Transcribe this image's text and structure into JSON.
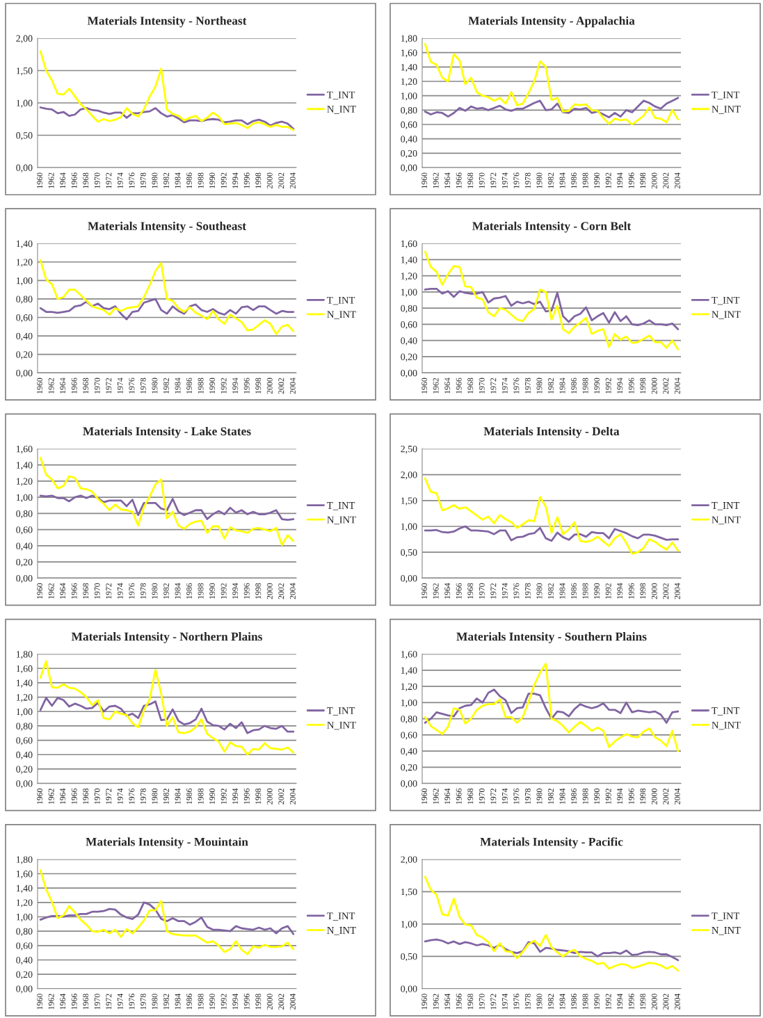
{
  "chart_data": [
    {
      "type": "line",
      "title": "Materials Intensity - Northeast",
      "categories": [
        "1960",
        null,
        "1962",
        null,
        "1964",
        null,
        "1966",
        null,
        "1968",
        null,
        "1970",
        null,
        "1972",
        null,
        "1974",
        null,
        "1976",
        null,
        "1978",
        null,
        "1980",
        null,
        "1982",
        null,
        "1984",
        null,
        "1986",
        null,
        "1988",
        null,
        "1990",
        null,
        "1992",
        null,
        "1994",
        null,
        "1996",
        null,
        "1998",
        null,
        "2000",
        null,
        "2002",
        null,
        "2004"
      ],
      "ylim": [
        0,
        2
      ],
      "yticks": [
        {
          "value": 0,
          "label": "0,00"
        },
        {
          "value": 0.5,
          "label": "0,50"
        },
        {
          "value": 1,
          "label": "1,00"
        },
        {
          "value": 1.5,
          "label": "1,50"
        },
        {
          "value": 2,
          "label": "2,00"
        }
      ],
      "grid": "y",
      "legend": "right",
      "line_style": "solid",
      "marker": "none",
      "series": [
        {
          "name": "T_INT",
          "color": "#8064a2",
          "values": [
            0.93,
            0.91,
            0.9,
            0.84,
            0.86,
            0.8,
            0.82,
            0.9,
            0.92,
            0.89,
            0.88,
            0.85,
            0.83,
            0.85,
            0.85,
            0.77,
            0.84,
            0.84,
            0.86,
            0.87,
            0.92,
            0.84,
            0.79,
            0.81,
            0.76,
            0.7,
            0.73,
            0.73,
            0.72,
            0.74,
            0.75,
            0.74,
            0.7,
            0.71,
            0.73,
            0.73,
            0.67,
            0.72,
            0.74,
            0.71,
            0.65,
            0.69,
            0.71,
            0.68,
            0.6
          ]
        },
        {
          "name": "N_INT",
          "color": "#ffff00",
          "values": [
            1.8,
            1.5,
            1.35,
            1.14,
            1.13,
            1.22,
            1.1,
            0.98,
            0.9,
            0.8,
            0.71,
            0.75,
            0.72,
            0.74,
            0.78,
            0.92,
            0.83,
            0.79,
            0.9,
            1.1,
            1.25,
            1.53,
            0.9,
            0.83,
            0.8,
            0.73,
            0.77,
            0.8,
            0.72,
            0.77,
            0.85,
            0.79,
            0.67,
            0.68,
            0.69,
            0.66,
            0.61,
            0.68,
            0.7,
            0.67,
            0.63,
            0.66,
            0.63,
            0.63,
            0.58
          ]
        }
      ]
    },
    {
      "type": "line",
      "title": "Materials Intensity - Appalachia",
      "categories": [
        "1960",
        null,
        "1962",
        null,
        "1964",
        null,
        "1966",
        null,
        "1968",
        null,
        "1970",
        null,
        "1972",
        null,
        "1974",
        null,
        "1976",
        null,
        "1978",
        null,
        "1980",
        null,
        "1982",
        null,
        "1984",
        null,
        "1986",
        null,
        "1988",
        null,
        "1990",
        null,
        "1992",
        null,
        "1994",
        null,
        "1996",
        null,
        "1998",
        null,
        "2000",
        null,
        "2002",
        null,
        "2004"
      ],
      "ylim": [
        0,
        1.8
      ],
      "yticks": [
        {
          "value": 0,
          "label": "0,00"
        },
        {
          "value": 0.2,
          "label": "0,20"
        },
        {
          "value": 0.4,
          "label": "0,40"
        },
        {
          "value": 0.6,
          "label": "0,60"
        },
        {
          "value": 0.8,
          "label": "0,80"
        },
        {
          "value": 1,
          "label": "1,00"
        },
        {
          "value": 1.2,
          "label": "1,20"
        },
        {
          "value": 1.4,
          "label": "1,40"
        },
        {
          "value": 1.6,
          "label": "1,60"
        },
        {
          "value": 1.8,
          "label": "1,80"
        }
      ],
      "grid": "y",
      "legend": "right",
      "line_style": "solid",
      "marker": "none",
      "series": [
        {
          "name": "T_INT",
          "color": "#8064a2",
          "values": [
            0.78,
            0.74,
            0.77,
            0.76,
            0.71,
            0.76,
            0.83,
            0.79,
            0.85,
            0.82,
            0.83,
            0.8,
            0.83,
            0.86,
            0.81,
            0.79,
            0.82,
            0.82,
            0.86,
            0.9,
            0.93,
            0.8,
            0.81,
            0.89,
            0.77,
            0.76,
            0.82,
            0.81,
            0.83,
            0.76,
            0.78,
            0.74,
            0.7,
            0.76,
            0.71,
            0.8,
            0.77,
            0.85,
            0.93,
            0.9,
            0.85,
            0.82,
            0.89,
            0.93,
            0.97
          ]
        },
        {
          "name": "N_INT",
          "color": "#ffff00",
          "values": [
            1.72,
            1.47,
            1.43,
            1.25,
            1.2,
            1.58,
            1.49,
            1.16,
            1.25,
            1.05,
            1.0,
            0.98,
            0.93,
            0.97,
            0.89,
            1.05,
            0.87,
            0.89,
            1.04,
            1.2,
            1.48,
            1.4,
            0.94,
            0.97,
            0.78,
            0.79,
            0.88,
            0.87,
            0.88,
            0.8,
            0.79,
            0.69,
            0.61,
            0.68,
            0.66,
            0.67,
            0.6,
            0.66,
            0.72,
            0.84,
            0.69,
            0.68,
            0.63,
            0.8,
            0.67
          ]
        }
      ]
    },
    {
      "type": "line",
      "title": "Materials Intensity - Southeast",
      "categories": [
        "1960",
        null,
        "1962",
        null,
        "1964",
        null,
        "1966",
        null,
        "1968",
        null,
        "1970",
        null,
        "1972",
        null,
        "1974",
        null,
        "1976",
        null,
        "1978",
        null,
        "1980",
        null,
        "1982",
        null,
        "1984",
        null,
        "1986",
        null,
        "1988",
        null,
        "1990",
        null,
        "1992",
        null,
        "1994",
        null,
        "1996",
        null,
        "1998",
        null,
        "2000",
        null,
        "2002",
        null,
        "2004"
      ],
      "ylim": [
        0,
        1.4
      ],
      "yticks": [
        {
          "value": 0,
          "label": "0,00"
        },
        {
          "value": 0.2,
          "label": "0,20"
        },
        {
          "value": 0.4,
          "label": "0,40"
        },
        {
          "value": 0.6,
          "label": "0,60"
        },
        {
          "value": 0.8,
          "label": "0,80"
        },
        {
          "value": 1,
          "label": "1,00"
        },
        {
          "value": 1.2,
          "label": "1,20"
        },
        {
          "value": 1.4,
          "label": "1,40"
        }
      ],
      "grid": "y",
      "legend": "right",
      "line_style": "solid",
      "marker": "none",
      "series": [
        {
          "name": "T_INT",
          "color": "#8064a2",
          "values": [
            0.7,
            0.66,
            0.66,
            0.65,
            0.66,
            0.67,
            0.72,
            0.73,
            0.77,
            0.72,
            0.75,
            0.7,
            0.69,
            0.72,
            0.64,
            0.58,
            0.66,
            0.67,
            0.76,
            0.78,
            0.8,
            0.68,
            0.64,
            0.72,
            0.67,
            0.64,
            0.72,
            0.74,
            0.68,
            0.66,
            0.69,
            0.65,
            0.63,
            0.68,
            0.64,
            0.71,
            0.72,
            0.68,
            0.72,
            0.72,
            0.68,
            0.64,
            0.67,
            0.66,
            0.66
          ]
        },
        {
          "name": "N_INT",
          "color": "#ffff00",
          "values": [
            1.22,
            1.01,
            0.96,
            0.8,
            0.82,
            0.9,
            0.9,
            0.84,
            0.78,
            0.72,
            0.7,
            0.68,
            0.63,
            0.7,
            0.67,
            0.7,
            0.71,
            0.72,
            0.82,
            0.95,
            1.1,
            1.19,
            0.8,
            0.78,
            0.7,
            0.66,
            0.71,
            0.65,
            0.62,
            0.58,
            0.67,
            0.58,
            0.53,
            0.63,
            0.59,
            0.55,
            0.46,
            0.47,
            0.52,
            0.57,
            0.53,
            0.42,
            0.5,
            0.52,
            0.45
          ]
        }
      ]
    },
    {
      "type": "line",
      "title": "Materials Intensity - Corn Belt",
      "categories": [
        "1960",
        null,
        "1962",
        null,
        "1964",
        null,
        "1966",
        null,
        "1968",
        null,
        "1970",
        null,
        "1972",
        null,
        "1974",
        null,
        "1976",
        null,
        "1978",
        null,
        "1980",
        null,
        "1982",
        null,
        "1984",
        null,
        "1986",
        null,
        "1988",
        null,
        "1990",
        null,
        "1992",
        null,
        "1994",
        null,
        "1996",
        null,
        "1998",
        null,
        "2000",
        null,
        "2002",
        null,
        "2004"
      ],
      "ylim": [
        0,
        1.6
      ],
      "yticks": [
        {
          "value": 0,
          "label": "0,00"
        },
        {
          "value": 0.2,
          "label": "0,20"
        },
        {
          "value": 0.4,
          "label": "0,40"
        },
        {
          "value": 0.6,
          "label": "0,60"
        },
        {
          "value": 0.8,
          "label": "0,80"
        },
        {
          "value": 1,
          "label": "1,00"
        },
        {
          "value": 1.2,
          "label": "1,20"
        },
        {
          "value": 1.4,
          "label": "1,40"
        },
        {
          "value": 1.6,
          "label": "1,60"
        }
      ],
      "grid": "y",
      "legend": "right",
      "line_style": "solid",
      "marker": "none",
      "series": [
        {
          "name": "T_INT",
          "color": "#8064a2",
          "values": [
            1.03,
            1.04,
            1.04,
            0.98,
            1.01,
            0.94,
            1.01,
            0.99,
            0.98,
            0.98,
            1.0,
            0.87,
            0.92,
            0.93,
            0.95,
            0.83,
            0.88,
            0.86,
            0.88,
            0.85,
            0.88,
            0.76,
            0.77,
            0.99,
            0.7,
            0.63,
            0.7,
            0.73,
            0.81,
            0.65,
            0.7,
            0.74,
            0.62,
            0.75,
            0.64,
            0.7,
            0.6,
            0.59,
            0.61,
            0.65,
            0.6,
            0.6,
            0.59,
            0.61,
            0.54
          ]
        },
        {
          "name": "N_INT",
          "color": "#ffff00",
          "values": [
            1.5,
            1.31,
            1.25,
            1.09,
            1.22,
            1.32,
            1.31,
            1.07,
            1.06,
            0.93,
            0.91,
            0.75,
            0.7,
            0.8,
            0.78,
            0.72,
            0.66,
            0.64,
            0.74,
            0.79,
            1.03,
            1.0,
            0.66,
            0.83,
            0.54,
            0.49,
            0.57,
            0.62,
            0.68,
            0.48,
            0.52,
            0.54,
            0.32,
            0.48,
            0.41,
            0.45,
            0.37,
            0.38,
            0.42,
            0.46,
            0.38,
            0.38,
            0.31,
            0.4,
            0.29
          ]
        }
      ]
    },
    {
      "type": "line",
      "title": "Materials Intensity - Lake States",
      "categories": [
        "1960",
        null,
        "1962",
        null,
        "1964",
        null,
        "1966",
        null,
        "1968",
        null,
        "1970",
        null,
        "1972",
        null,
        "1974",
        null,
        "1976",
        null,
        "1978",
        null,
        "1980",
        null,
        "1982",
        null,
        "1984",
        null,
        "1986",
        null,
        "1988",
        null,
        "1990",
        null,
        "1992",
        null,
        "1994",
        null,
        "1996",
        null,
        "1998",
        null,
        "2000",
        null,
        "2002",
        null,
        "2004"
      ],
      "ylim": [
        0,
        1.6
      ],
      "yticks": [
        {
          "value": 0,
          "label": "0,00"
        },
        {
          "value": 0.2,
          "label": "0,20"
        },
        {
          "value": 0.4,
          "label": "0,40"
        },
        {
          "value": 0.6,
          "label": "0,60"
        },
        {
          "value": 0.8,
          "label": "0,80"
        },
        {
          "value": 1,
          "label": "1,00"
        },
        {
          "value": 1.2,
          "label": "1,20"
        },
        {
          "value": 1.4,
          "label": "1,40"
        },
        {
          "value": 1.6,
          "label": "1,60"
        }
      ],
      "grid": "y",
      "legend": "right",
      "line_style": "solid",
      "marker": "none",
      "series": [
        {
          "name": "T_INT",
          "color": "#8064a2",
          "values": [
            1.02,
            1.01,
            1.02,
            0.99,
            0.99,
            0.95,
            1.0,
            1.02,
            0.99,
            1.02,
            0.99,
            0.94,
            0.96,
            0.96,
            0.96,
            0.89,
            0.97,
            0.78,
            0.93,
            0.93,
            0.93,
            0.86,
            0.84,
            0.98,
            0.82,
            0.78,
            0.81,
            0.84,
            0.84,
            0.73,
            0.79,
            0.83,
            0.79,
            0.87,
            0.81,
            0.84,
            0.79,
            0.82,
            0.79,
            0.79,
            0.81,
            0.84,
            0.73,
            0.72,
            0.73
          ]
        },
        {
          "name": "N_INT",
          "color": "#ffff00",
          "values": [
            1.49,
            1.28,
            1.22,
            1.11,
            1.14,
            1.26,
            1.24,
            1.11,
            1.1,
            1.07,
            0.98,
            0.92,
            0.84,
            0.91,
            0.85,
            0.84,
            0.82,
            0.65,
            0.88,
            1.01,
            1.16,
            1.22,
            0.74,
            0.82,
            0.65,
            0.61,
            0.67,
            0.7,
            0.71,
            0.56,
            0.64,
            0.64,
            0.49,
            0.63,
            0.59,
            0.58,
            0.56,
            0.61,
            0.62,
            0.6,
            0.58,
            0.62,
            0.41,
            0.53,
            0.46
          ]
        }
      ]
    },
    {
      "type": "line",
      "title": "Materials Intensity - Delta",
      "categories": [
        "1960",
        null,
        "1962",
        null,
        "1964",
        null,
        "1966",
        null,
        "1968",
        null,
        "1970",
        null,
        "1972",
        null,
        "1974",
        null,
        "1976",
        null,
        "1978",
        null,
        "1980",
        null,
        "1982",
        null,
        "1984",
        null,
        "1986",
        null,
        "1988",
        null,
        "1990",
        null,
        "1992",
        null,
        "1994",
        null,
        "1996",
        null,
        "1998",
        null,
        "2000",
        null,
        "2002",
        null,
        "2004"
      ],
      "ylim": [
        0,
        2.5
      ],
      "yticks": [
        {
          "value": 0,
          "label": "0,00"
        },
        {
          "value": 0.5,
          "label": "0,50"
        },
        {
          "value": 1,
          "label": "1,00"
        },
        {
          "value": 1.5,
          "label": "1,50"
        },
        {
          "value": 2,
          "label": "2,00"
        },
        {
          "value": 2.5,
          "label": "2,50"
        }
      ],
      "grid": "y",
      "legend": "right",
      "line_style": "solid",
      "marker": "none",
      "series": [
        {
          "name": "T_INT",
          "color": "#8064a2",
          "values": [
            0.92,
            0.92,
            0.93,
            0.89,
            0.88,
            0.9,
            0.96,
            1.0,
            0.92,
            0.92,
            0.91,
            0.9,
            0.85,
            0.92,
            0.92,
            0.73,
            0.79,
            0.8,
            0.85,
            0.87,
            0.97,
            0.77,
            0.72,
            0.88,
            0.79,
            0.74,
            0.84,
            0.85,
            0.8,
            0.89,
            0.87,
            0.87,
            0.77,
            0.95,
            0.91,
            0.87,
            0.81,
            0.77,
            0.84,
            0.84,
            0.82,
            0.78,
            0.74,
            0.75,
            0.75
          ]
        },
        {
          "name": "N_INT",
          "color": "#ffff00",
          "values": [
            1.93,
            1.67,
            1.64,
            1.31,
            1.35,
            1.41,
            1.34,
            1.37,
            1.29,
            1.21,
            1.13,
            1.19,
            1.06,
            1.22,
            1.14,
            1.08,
            0.97,
            1.04,
            1.12,
            1.1,
            1.57,
            1.38,
            0.88,
            1.18,
            0.85,
            0.94,
            1.08,
            0.72,
            0.7,
            0.73,
            0.8,
            0.71,
            0.62,
            0.77,
            0.85,
            0.68,
            0.47,
            0.5,
            0.58,
            0.75,
            0.7,
            0.62,
            0.55,
            0.69,
            0.53
          ]
        }
      ]
    },
    {
      "type": "line",
      "title": "Materials Intensity - Northern Plains",
      "categories": [
        "1960",
        null,
        "1962",
        null,
        "1964",
        null,
        "1966",
        null,
        "1968",
        null,
        "1970",
        null,
        "1972",
        null,
        "1974",
        null,
        "1976",
        null,
        "1978",
        null,
        "1980",
        null,
        "1982",
        null,
        "1984",
        null,
        "1986",
        null,
        "1988",
        null,
        "1990",
        null,
        "1992",
        null,
        "1994",
        null,
        "1996",
        null,
        "1998",
        null,
        "2000",
        null,
        "2002",
        null,
        "2004"
      ],
      "ylim": [
        0,
        1.8
      ],
      "yticks": [
        {
          "value": 0,
          "label": "0,00"
        },
        {
          "value": 0.2,
          "label": "0,20"
        },
        {
          "value": 0.4,
          "label": "0,40"
        },
        {
          "value": 0.6,
          "label": "0,60"
        },
        {
          "value": 0.8,
          "label": "0,80"
        },
        {
          "value": 1,
          "label": "1,00"
        },
        {
          "value": 1.2,
          "label": "1,20"
        },
        {
          "value": 1.4,
          "label": "1,40"
        },
        {
          "value": 1.6,
          "label": "1,60"
        },
        {
          "value": 1.8,
          "label": "1,80"
        }
      ],
      "grid": "y",
      "legend": "right",
      "line_style": "solid",
      "marker": "none",
      "series": [
        {
          "name": "T_INT",
          "color": "#8064a2",
          "values": [
            1.02,
            1.19,
            1.08,
            1.19,
            1.16,
            1.07,
            1.11,
            1.08,
            1.04,
            1.05,
            1.12,
            1.0,
            1.07,
            1.08,
            1.04,
            0.94,
            0.97,
            0.91,
            1.08,
            1.1,
            1.14,
            0.88,
            0.89,
            1.03,
            0.87,
            0.82,
            0.84,
            0.89,
            1.04,
            0.86,
            0.81,
            0.8,
            0.75,
            0.83,
            0.77,
            0.85,
            0.7,
            0.74,
            0.75,
            0.8,
            0.77,
            0.76,
            0.8,
            0.72,
            0.72
          ]
        },
        {
          "name": "N_INT",
          "color": "#ffff00",
          "values": [
            1.47,
            1.7,
            1.34,
            1.33,
            1.38,
            1.33,
            1.32,
            1.27,
            1.2,
            1.09,
            1.16,
            0.91,
            0.89,
            1.0,
            0.97,
            0.95,
            0.84,
            0.78,
            1.02,
            1.17,
            1.58,
            1.25,
            0.8,
            0.92,
            0.71,
            0.7,
            0.72,
            0.78,
            0.89,
            0.69,
            0.63,
            0.58,
            0.44,
            0.57,
            0.52,
            0.51,
            0.4,
            0.48,
            0.47,
            0.56,
            0.49,
            0.48,
            0.47,
            0.5,
            0.43
          ]
        }
      ]
    },
    {
      "type": "line",
      "title": "Materials Intensity - Southern Plains",
      "categories": [
        "1960",
        null,
        "1962",
        null,
        "1964",
        null,
        "1966",
        null,
        "1968",
        null,
        "1970",
        null,
        "1972",
        null,
        "1974",
        null,
        "1976",
        null,
        "1978",
        null,
        "1980",
        null,
        "1982",
        null,
        "1984",
        null,
        "1986",
        null,
        "1988",
        null,
        "1990",
        null,
        "1992",
        null,
        "1994",
        null,
        "1996",
        null,
        "1998",
        null,
        "2000",
        null,
        "2002",
        null,
        "2004"
      ],
      "ylim": [
        0,
        1.6
      ],
      "yticks": [
        {
          "value": 0,
          "label": "0,00"
        },
        {
          "value": 0.2,
          "label": "0,20"
        },
        {
          "value": 0.4,
          "label": "0,40"
        },
        {
          "value": 0.6,
          "label": "0,60"
        },
        {
          "value": 0.8,
          "label": "0,80"
        },
        {
          "value": 1,
          "label": "1,00"
        },
        {
          "value": 1.2,
          "label": "1,20"
        },
        {
          "value": 1.4,
          "label": "1,40"
        },
        {
          "value": 1.6,
          "label": "1,60"
        }
      ],
      "grid": "y",
      "legend": "right",
      "line_style": "solid",
      "marker": "none",
      "series": [
        {
          "name": "T_INT",
          "color": "#8064a2",
          "values": [
            0.75,
            0.8,
            0.88,
            0.86,
            0.84,
            0.83,
            0.93,
            0.96,
            0.97,
            1.05,
            1.0,
            1.12,
            1.16,
            1.08,
            1.03,
            0.87,
            0.93,
            0.94,
            1.11,
            1.11,
            1.09,
            0.93,
            0.8,
            0.89,
            0.88,
            0.83,
            0.92,
            0.98,
            0.95,
            0.93,
            0.95,
            0.99,
            0.91,
            0.91,
            0.87,
            1.0,
            0.88,
            0.9,
            0.89,
            0.88,
            0.89,
            0.85,
            0.75,
            0.88,
            0.89
          ]
        },
        {
          "name": "N_INT",
          "color": "#ffff00",
          "values": [
            0.82,
            0.71,
            0.66,
            0.61,
            0.7,
            0.93,
            0.91,
            0.74,
            0.8,
            0.91,
            0.96,
            0.98,
            0.98,
            1.04,
            0.82,
            0.82,
            0.75,
            0.82,
            1.01,
            1.22,
            1.37,
            1.48,
            0.8,
            0.77,
            0.71,
            0.63,
            0.7,
            0.76,
            0.71,
            0.65,
            0.69,
            0.65,
            0.45,
            0.52,
            0.57,
            0.61,
            0.58,
            0.57,
            0.64,
            0.68,
            0.57,
            0.53,
            0.46,
            0.65,
            0.4
          ]
        }
      ]
    },
    {
      "type": "line",
      "title": "Materials Intensity - Mouintain",
      "categories": [
        "1960",
        null,
        "1962",
        null,
        "1964",
        null,
        "1966",
        null,
        "1968",
        null,
        "1970",
        null,
        "1972",
        null,
        "1974",
        null,
        "1976",
        null,
        "1978",
        null,
        "1980",
        null,
        "1982",
        null,
        "1984",
        null,
        "1986",
        null,
        "1988",
        null,
        "1990",
        null,
        "1992",
        null,
        "1994",
        null,
        "1996",
        null,
        "1998",
        null,
        "2000",
        null,
        "2002",
        null,
        "2004"
      ],
      "ylim": [
        0,
        1.8
      ],
      "yticks": [
        {
          "value": 0,
          "label": "0,00"
        },
        {
          "value": 0.2,
          "label": "0,20"
        },
        {
          "value": 0.4,
          "label": "0,40"
        },
        {
          "value": 0.6,
          "label": "0,60"
        },
        {
          "value": 0.8,
          "label": "0,80"
        },
        {
          "value": 1,
          "label": "1,00"
        },
        {
          "value": 1.2,
          "label": "1,20"
        },
        {
          "value": 1.4,
          "label": "1,40"
        },
        {
          "value": 1.6,
          "label": "1,60"
        },
        {
          "value": 1.8,
          "label": "1,80"
        }
      ],
      "grid": "y",
      "legend": "right",
      "line_style": "solid",
      "marker": "none",
      "series": [
        {
          "name": "T_INT",
          "color": "#8064a2",
          "values": [
            0.96,
            0.99,
            1.01,
            1.01,
            1.0,
            1.02,
            1.02,
            1.04,
            1.04,
            1.07,
            1.07,
            1.08,
            1.11,
            1.1,
            1.03,
            0.99,
            0.97,
            1.03,
            1.2,
            1.17,
            1.1,
            0.97,
            0.94,
            0.98,
            0.94,
            0.94,
            0.89,
            0.93,
            0.99,
            0.86,
            0.82,
            0.82,
            0.81,
            0.8,
            0.87,
            0.84,
            0.83,
            0.82,
            0.85,
            0.82,
            0.84,
            0.77,
            0.84,
            0.87,
            0.76
          ]
        },
        {
          "name": "N_INT",
          "color": "#ffff00",
          "values": [
            1.65,
            1.38,
            1.21,
            0.98,
            1.02,
            1.15,
            1.06,
            0.96,
            0.89,
            0.8,
            0.79,
            0.82,
            0.77,
            0.82,
            0.72,
            0.83,
            0.77,
            0.85,
            0.95,
            1.09,
            1.09,
            1.22,
            0.8,
            0.76,
            0.75,
            0.74,
            0.74,
            0.74,
            0.69,
            0.64,
            0.66,
            0.6,
            0.51,
            0.55,
            0.66,
            0.54,
            0.48,
            0.59,
            0.57,
            0.61,
            0.58,
            0.58,
            0.59,
            0.64,
            0.55
          ]
        }
      ]
    },
    {
      "type": "line",
      "title": "Materials Intensity - Pacific",
      "categories": [
        "1960",
        null,
        "1962",
        null,
        "1964",
        null,
        "1966",
        null,
        "1968",
        null,
        "1970",
        null,
        "1972",
        null,
        "1974",
        null,
        "1976",
        null,
        "1978",
        null,
        "1980",
        null,
        "1982",
        null,
        "1984",
        null,
        "1986",
        null,
        "1988",
        null,
        "1990",
        null,
        "1992",
        null,
        "1994",
        null,
        "1996",
        null,
        "1998",
        null,
        "2000",
        null,
        "2002",
        null,
        "2004"
      ],
      "ylim": [
        0,
        2
      ],
      "yticks": [
        {
          "value": 0,
          "label": "0,00"
        },
        {
          "value": 0.5,
          "label": "0,50"
        },
        {
          "value": 1,
          "label": "1,00"
        },
        {
          "value": 1.5,
          "label": "1,50"
        },
        {
          "value": 2,
          "label": "2,00"
        }
      ],
      "grid": "y",
      "legend": "right",
      "line_style": "solid",
      "marker": "none",
      "series": [
        {
          "name": "T_INT",
          "color": "#8064a2",
          "values": [
            0.73,
            0.75,
            0.76,
            0.74,
            0.7,
            0.73,
            0.69,
            0.72,
            0.7,
            0.67,
            0.69,
            0.67,
            0.63,
            0.68,
            0.61,
            0.57,
            0.55,
            0.58,
            0.72,
            0.7,
            0.57,
            0.63,
            0.62,
            0.6,
            0.59,
            0.58,
            0.55,
            0.57,
            0.56,
            0.56,
            0.5,
            0.55,
            0.55,
            0.56,
            0.54,
            0.59,
            0.52,
            0.53,
            0.56,
            0.57,
            0.56,
            0.53,
            0.53,
            0.49,
            0.44
          ]
        },
        {
          "name": "N_INT",
          "color": "#ffff00",
          "values": [
            1.73,
            1.53,
            1.45,
            1.15,
            1.13,
            1.39,
            1.11,
            0.99,
            0.98,
            0.83,
            0.79,
            0.72,
            0.58,
            0.7,
            0.58,
            0.57,
            0.47,
            0.57,
            0.69,
            0.74,
            0.66,
            0.83,
            0.64,
            0.56,
            0.5,
            0.57,
            0.6,
            0.5,
            0.46,
            0.43,
            0.38,
            0.4,
            0.31,
            0.35,
            0.38,
            0.37,
            0.32,
            0.34,
            0.37,
            0.4,
            0.39,
            0.36,
            0.31,
            0.35,
            0.28
          ]
        }
      ]
    }
  ]
}
